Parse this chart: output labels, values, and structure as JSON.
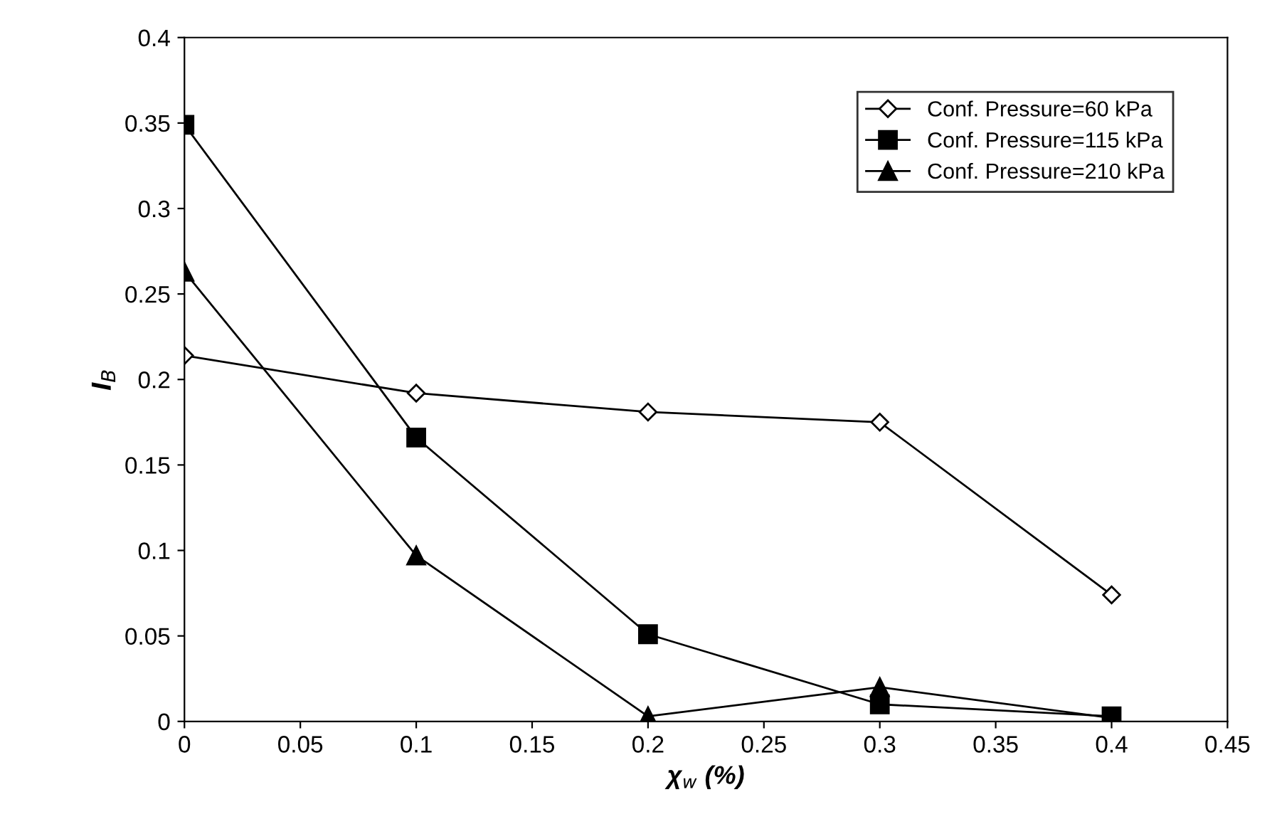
{
  "chart_data": {
    "type": "line",
    "xlabel": "χ$_{w}$ (%)",
    "ylabel": "I$_{B}$",
    "x": [
      0,
      0.1,
      0.2,
      0.3,
      0.4
    ],
    "series": [
      {
        "name": "Conf. Pressure=60 kPa",
        "color": "#000000",
        "marker": "diamond",
        "values": [
          0.214,
          0.192,
          0.181,
          0.175,
          0.074
        ]
      },
      {
        "name": "Conf. Pressure=115 kPa",
        "color": "#000000",
        "marker": "square",
        "values": [
          0.349,
          0.166,
          0.051,
          0.01,
          0.003
        ]
      },
      {
        "name": "Conf. Pressure=210 kPa",
        "color": "#000000",
        "marker": "triangle",
        "values": [
          0.263,
          0.097,
          0.003,
          0.02,
          0.002
        ]
      }
    ],
    "xlim": [
      0,
      0.45
    ],
    "xticks": [
      0,
      0.05,
      0.1,
      0.15,
      0.2,
      0.25,
      0.3,
      0.35,
      0.4,
      0.45
    ],
    "ylim": [
      0,
      0.4
    ],
    "yticks": [
      0,
      0.05,
      0.1,
      0.15,
      0.2,
      0.25,
      0.3,
      0.35,
      0.4
    ],
    "grid": false,
    "legend": "top right",
    "line_style": "solid"
  }
}
